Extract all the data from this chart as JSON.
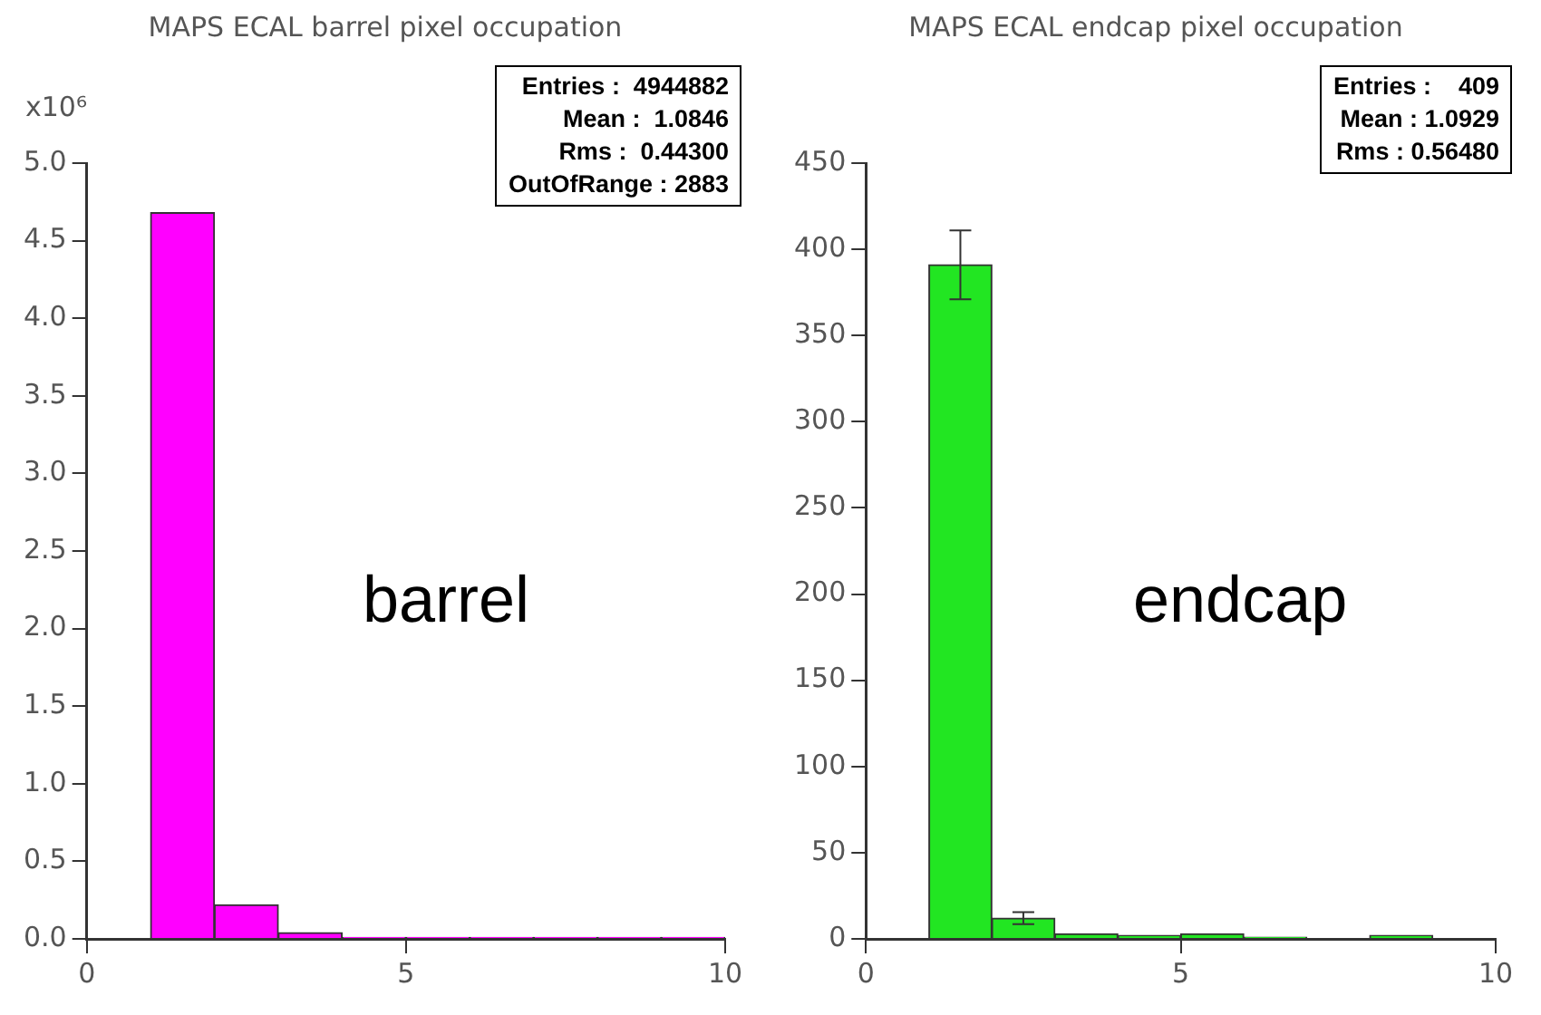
{
  "chart_data": [
    {
      "type": "histogram",
      "title": "MAPS ECAL barrel pixel occupation",
      "ylabel": "x10⁶",
      "bins": [
        0,
        1,
        2,
        3,
        4,
        5,
        6,
        7,
        8,
        9,
        10
      ],
      "values": [
        0,
        4.68,
        0.22,
        0.04,
        0.01,
        0.01,
        0.01,
        0.01,
        0.01,
        0.01
      ],
      "color": "#ff00ff",
      "xlim": [
        0,
        10
      ],
      "xticks": [
        0,
        5,
        10
      ],
      "ylim": [
        0,
        5.0
      ],
      "yticks": [
        {
          "value": 0,
          "label": "0.0"
        },
        {
          "value": 0.5,
          "label": "0.5"
        },
        {
          "value": 1,
          "label": "1.0"
        },
        {
          "value": 1.5,
          "label": "1.5"
        },
        {
          "value": 2,
          "label": "2.0"
        },
        {
          "value": 2.5,
          "label": "2.5"
        },
        {
          "value": 3,
          "label": "3.0"
        },
        {
          "value": 3.5,
          "label": "3.5"
        },
        {
          "value": 4,
          "label": "4.0"
        },
        {
          "value": 4.5,
          "label": "4.5"
        },
        {
          "value": 5,
          "label": "5.0"
        }
      ],
      "grid": false,
      "legend": false,
      "annotations": [
        "Entries :  4944882",
        "Mean :  1.0846",
        "Rms :  0.44300",
        "OutOfRange : 2883",
        "barrel"
      ]
    },
    {
      "type": "histogram",
      "title": "MAPS ECAL endcap pixel occupation",
      "bins": [
        0,
        1,
        2,
        3,
        4,
        5,
        6,
        7,
        8,
        9,
        10
      ],
      "values": [
        0,
        391,
        12,
        3,
        2,
        3,
        1,
        0,
        2,
        0
      ],
      "errors": [
        null,
        20,
        3.5,
        null,
        null,
        null,
        null,
        null,
        null,
        null
      ],
      "color": "#22e622",
      "xlim": [
        0,
        10
      ],
      "xticks": [
        0,
        5,
        10
      ],
      "ylim": [
        0,
        450
      ],
      "yticks": [
        0,
        50,
        100,
        150,
        200,
        250,
        300,
        350,
        400,
        450
      ],
      "grid": false,
      "legend": false,
      "annotations": [
        "Entries :    409",
        "Mean : 1.0929",
        "Rms : 0.56480",
        "endcap"
      ]
    }
  ]
}
